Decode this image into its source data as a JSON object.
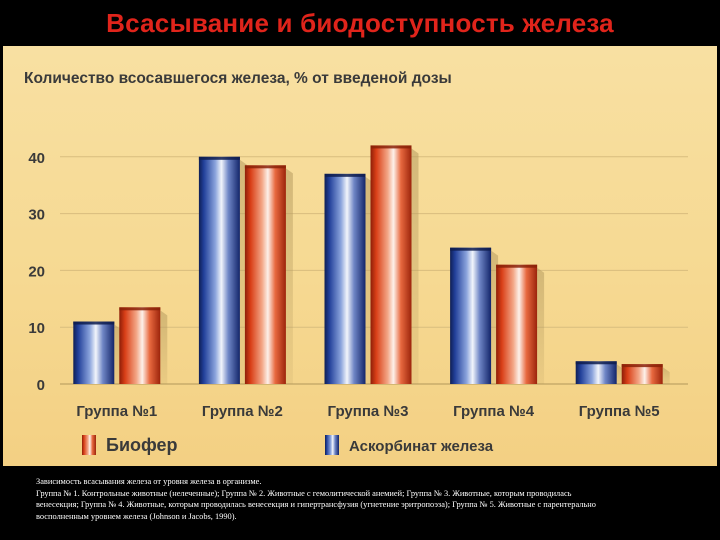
{
  "title": "Всасывание и биодоступность железа",
  "colors": {
    "background": "#000000",
    "title": "#e0241b",
    "panel": "#f6d992",
    "axis_text": "#333333",
    "series_biofer": "#d9421c",
    "series_ascorbate": "#1e3a8c"
  },
  "chart_data": {
    "type": "bar",
    "title": "Количество всосавшегося железа, % от введеной дозы",
    "categories": [
      "Группа №1",
      "Группа №2",
      "Группа №3",
      "Группа №4",
      "Группа №5"
    ],
    "series": [
      {
        "name": "Аскорбинат железа",
        "values": [
          11,
          40,
          37,
          24,
          4
        ],
        "color": "#1e3a8c"
      },
      {
        "name": "Биофер",
        "values": [
          13.5,
          38.5,
          42,
          21,
          3.5
        ],
        "color": "#d9421c"
      }
    ],
    "yticks": [
      0,
      10,
      20,
      30,
      40
    ],
    "ylim": [
      0,
      50
    ],
    "grid": true,
    "legend_position": "bottom",
    "legend_order": [
      "Биофер",
      "Аскорбинат железа"
    ]
  },
  "caption": {
    "line1": "Зависимость всасывания железа от уровня железа в организме.",
    "line2": "Группа № 1. Контрольные животные (нелеченные); Группа № 2. Животные с гемолитической анемией; Группа № 3. Животные, которым проводилась",
    "line3": "венесекция; Группа № 4. Животные, которым проводилась венесекция и гипертрансфузия (угнетение эритропоэза); Группа № 5. Животные с парентерально",
    "line4": "восполненным уровнем железа (Johnson и Jacobs, 1990)."
  }
}
